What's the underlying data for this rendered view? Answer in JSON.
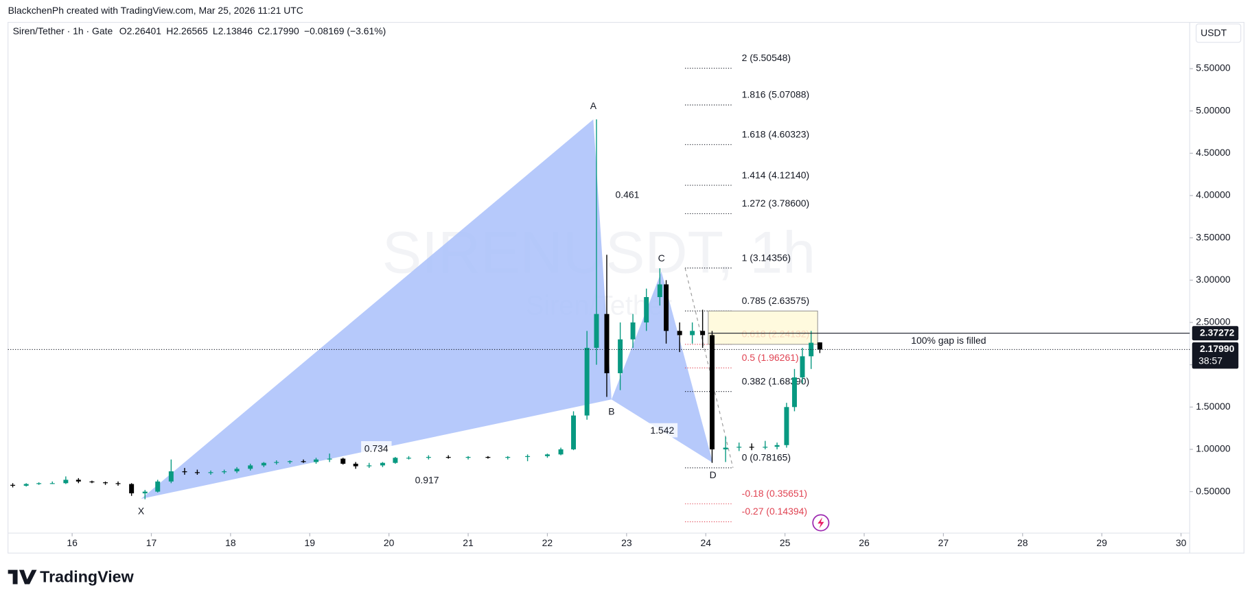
{
  "chart_data": {
    "type": "candlestick",
    "header": "BlackchenPh created with TradingView.com, Mar 25, 2026 11:21 UTC",
    "symbol": "Siren/Tether · 1h · Gate",
    "legend_values": [
      "O2.26401",
      "H2.26565",
      "L2.13846",
      "C2.17990",
      "−0.08169 (−3.61%)"
    ],
    "watermark": "SIRENUSDT, 1h",
    "watermark_sub": "Siren/Tether",
    "currency": "USDT",
    "brand": "TradingView",
    "up_color": "#089981",
    "down_color": "#000000",
    "pattern_color": "#a9c0fa",
    "xlim": [
      15.19,
      30.11
    ],
    "xticks": [
      16,
      17,
      18,
      19,
      20,
      21,
      22,
      23,
      24,
      25,
      26,
      27,
      28,
      29,
      30
    ],
    "ylim": [
      0,
      5.8
    ],
    "yticks": [
      {
        "value": 0.5,
        "label": "0.50000"
      },
      {
        "value": 1,
        "label": "1.00000"
      },
      {
        "value": 1.5,
        "label": "1.50000"
      },
      {
        "value": 2,
        "label": "2.00000"
      },
      {
        "value": 2.5,
        "label": "2.50000"
      },
      {
        "value": 3,
        "label": "3.00000"
      },
      {
        "value": 3.5,
        "label": "3.50000"
      },
      {
        "value": 4,
        "label": "4.00000"
      },
      {
        "value": 4.5,
        "label": "4.50000"
      },
      {
        "value": 5,
        "label": "5.00000"
      },
      {
        "value": 5.5,
        "label": "5.50000"
      }
    ],
    "candles": [
      {
        "x": 15.25,
        "open": 0.58,
        "high": 0.6,
        "low": 0.55,
        "close": 0.57
      },
      {
        "x": 15.42,
        "open": 0.57,
        "high": 0.6,
        "low": 0.56,
        "close": 0.59
      },
      {
        "x": 15.58,
        "open": 0.59,
        "high": 0.61,
        "low": 0.58,
        "close": 0.6
      },
      {
        "x": 15.75,
        "open": 0.6,
        "high": 0.62,
        "low": 0.59,
        "close": 0.6
      },
      {
        "x": 15.92,
        "open": 0.6,
        "high": 0.68,
        "low": 0.59,
        "close": 0.64
      },
      {
        "x": 16.08,
        "open": 0.64,
        "high": 0.66,
        "low": 0.6,
        "close": 0.62
      },
      {
        "x": 16.25,
        "open": 0.62,
        "high": 0.63,
        "low": 0.6,
        "close": 0.61
      },
      {
        "x": 16.42,
        "open": 0.61,
        "high": 0.62,
        "low": 0.58,
        "close": 0.6
      },
      {
        "x": 16.58,
        "open": 0.6,
        "high": 0.62,
        "low": 0.57,
        "close": 0.59
      },
      {
        "x": 16.75,
        "open": 0.59,
        "high": 0.6,
        "low": 0.45,
        "close": 0.48
      },
      {
        "x": 16.92,
        "open": 0.48,
        "high": 0.52,
        "low": 0.41,
        "close": 0.5
      },
      {
        "x": 17.08,
        "open": 0.5,
        "high": 0.64,
        "low": 0.49,
        "close": 0.62
      },
      {
        "x": 17.25,
        "open": 0.62,
        "high": 0.88,
        "low": 0.6,
        "close": 0.74
      },
      {
        "x": 17.42,
        "open": 0.74,
        "high": 0.78,
        "low": 0.7,
        "close": 0.73
      },
      {
        "x": 17.58,
        "open": 0.73,
        "high": 0.76,
        "low": 0.7,
        "close": 0.72
      },
      {
        "x": 17.75,
        "open": 0.72,
        "high": 0.75,
        "low": 0.7,
        "close": 0.73
      },
      {
        "x": 17.92,
        "open": 0.73,
        "high": 0.76,
        "low": 0.71,
        "close": 0.74
      },
      {
        "x": 18.08,
        "open": 0.74,
        "high": 0.79,
        "low": 0.72,
        "close": 0.77
      },
      {
        "x": 18.25,
        "open": 0.77,
        "high": 0.83,
        "low": 0.75,
        "close": 0.81
      },
      {
        "x": 18.42,
        "open": 0.81,
        "high": 0.85,
        "low": 0.79,
        "close": 0.84
      },
      {
        "x": 18.58,
        "open": 0.84,
        "high": 0.87,
        "low": 0.82,
        "close": 0.85
      },
      {
        "x": 18.75,
        "open": 0.85,
        "high": 0.87,
        "low": 0.83,
        "close": 0.86
      },
      {
        "x": 18.92,
        "open": 0.86,
        "high": 0.88,
        "low": 0.84,
        "close": 0.85
      },
      {
        "x": 19.08,
        "open": 0.85,
        "high": 0.9,
        "low": 0.83,
        "close": 0.88
      },
      {
        "x": 19.25,
        "open": 0.88,
        "high": 0.95,
        "low": 0.85,
        "close": 0.89
      },
      {
        "x": 19.42,
        "open": 0.89,
        "high": 0.9,
        "low": 0.82,
        "close": 0.83
      },
      {
        "x": 19.58,
        "open": 0.83,
        "high": 0.85,
        "low": 0.77,
        "close": 0.8
      },
      {
        "x": 19.75,
        "open": 0.8,
        "high": 0.84,
        "low": 0.78,
        "close": 0.81
      },
      {
        "x": 19.92,
        "open": 0.81,
        "high": 0.85,
        "low": 0.79,
        "close": 0.84
      },
      {
        "x": 20.08,
        "open": 0.84,
        "high": 0.91,
        "low": 0.83,
        "close": 0.9
      },
      {
        "x": 20.25,
        "open": 0.9,
        "high": 0.92,
        "low": 0.88,
        "close": 0.9
      },
      {
        "x": 20.5,
        "open": 0.9,
        "high": 0.93,
        "low": 0.88,
        "close": 0.91
      },
      {
        "x": 20.75,
        "open": 0.91,
        "high": 0.93,
        "low": 0.89,
        "close": 0.9
      },
      {
        "x": 21.0,
        "open": 0.9,
        "high": 0.92,
        "low": 0.88,
        "close": 0.91
      },
      {
        "x": 21.25,
        "open": 0.91,
        "high": 0.92,
        "low": 0.89,
        "close": 0.9
      },
      {
        "x": 21.5,
        "open": 0.9,
        "high": 0.92,
        "low": 0.88,
        "close": 0.91
      },
      {
        "x": 21.75,
        "open": 0.91,
        "high": 0.94,
        "low": 0.86,
        "close": 0.92
      },
      {
        "x": 22.0,
        "open": 0.92,
        "high": 0.95,
        "low": 0.9,
        "close": 0.94
      },
      {
        "x": 22.17,
        "open": 0.94,
        "high": 1.02,
        "low": 0.93,
        "close": 1.0
      },
      {
        "x": 22.33,
        "open": 1.0,
        "high": 1.45,
        "low": 0.99,
        "close": 1.4
      },
      {
        "x": 22.5,
        "open": 1.4,
        "high": 2.4,
        "low": 1.35,
        "close": 2.2
      },
      {
        "x": 22.62,
        "open": 2.2,
        "high": 4.9,
        "low": 2.0,
        "close": 2.6
      },
      {
        "x": 22.75,
        "open": 2.6,
        "high": 3.3,
        "low": 1.62,
        "close": 1.9
      },
      {
        "x": 22.92,
        "open": 1.9,
        "high": 2.5,
        "low": 1.7,
        "close": 2.3
      },
      {
        "x": 23.08,
        "open": 2.3,
        "high": 2.6,
        "low": 2.2,
        "close": 2.5
      },
      {
        "x": 23.25,
        "open": 2.5,
        "high": 2.9,
        "low": 2.4,
        "close": 2.8
      },
      {
        "x": 23.42,
        "open": 2.8,
        "high": 3.14,
        "low": 2.7,
        "close": 2.95
      },
      {
        "x": 23.5,
        "open": 2.95,
        "high": 3.0,
        "low": 2.25,
        "close": 2.4
      },
      {
        "x": 23.67,
        "open": 2.4,
        "high": 2.5,
        "low": 2.15,
        "close": 2.35
      },
      {
        "x": 23.83,
        "open": 2.35,
        "high": 2.5,
        "low": 2.25,
        "close": 2.4
      },
      {
        "x": 23.96,
        "open": 2.4,
        "high": 2.65,
        "low": 2.2,
        "close": 2.35
      },
      {
        "x": 24.08,
        "open": 2.35,
        "high": 2.4,
        "low": 0.84,
        "close": 1.0
      },
      {
        "x": 24.25,
        "open": 1.0,
        "high": 1.15,
        "low": 0.85,
        "close": 1.02
      },
      {
        "x": 24.42,
        "open": 1.02,
        "high": 1.08,
        "low": 0.98,
        "close": 1.03
      },
      {
        "x": 24.58,
        "open": 1.03,
        "high": 1.07,
        "low": 0.99,
        "close": 1.02
      },
      {
        "x": 24.75,
        "open": 1.02,
        "high": 1.1,
        "low": 1.0,
        "close": 1.03
      },
      {
        "x": 24.9,
        "open": 1.03,
        "high": 1.08,
        "low": 1.0,
        "close": 1.05
      },
      {
        "x": 25.02,
        "open": 1.05,
        "high": 1.55,
        "low": 1.02,
        "close": 1.5
      },
      {
        "x": 25.12,
        "open": 1.5,
        "high": 1.95,
        "low": 1.45,
        "close": 1.85
      },
      {
        "x": 25.22,
        "open": 1.85,
        "high": 2.2,
        "low": 1.78,
        "close": 2.1
      },
      {
        "x": 25.33,
        "open": 2.1,
        "high": 2.4,
        "low": 1.95,
        "close": 2.26
      },
      {
        "x": 25.44,
        "open": 2.26401,
        "high": 2.26565,
        "low": 2.13846,
        "close": 2.1799
      }
    ],
    "pattern_points": [
      {
        "name": "X",
        "x": 16.87,
        "y": 0.415
      },
      {
        "name": "A",
        "x": 22.58,
        "y": 4.9
      },
      {
        "name": "B",
        "x": 22.81,
        "y": 1.59
      },
      {
        "name": "C",
        "x": 23.44,
        "y": 3.1
      },
      {
        "name": "D",
        "x": 24.09,
        "y": 0.84
      }
    ],
    "ratios": [
      0.461,
      0.734,
      0.917,
      1.542
    ],
    "fib_levels": [
      {
        "level": 2,
        "price": 5.50548,
        "label": "2 (5.50548)",
        "color": "#131722"
      },
      {
        "level": 1.816,
        "price": 5.07088,
        "label": "1.816 (5.07088)",
        "color": "#131722"
      },
      {
        "level": 1.618,
        "price": 4.60323,
        "label": "1.618 (4.60323)",
        "color": "#131722"
      },
      {
        "level": 1.414,
        "price": 4.1214,
        "label": "1.414 (4.12140)",
        "color": "#131722"
      },
      {
        "level": 1.272,
        "price": 3.786,
        "label": "1.272 (3.78600)",
        "color": "#131722"
      },
      {
        "level": 1,
        "price": 3.14356,
        "label": "1 (3.14356)",
        "color": "#131722"
      },
      {
        "level": 0.785,
        "price": 2.63575,
        "label": "0.785 (2.63575)",
        "color": "#131722"
      },
      {
        "level": 0.618,
        "price": 2.24132,
        "label": "0.618 (2.24132)",
        "color": "#e04352"
      },
      {
        "level": 0.5,
        "price": 1.96261,
        "label": "0.5 (1.96261)",
        "color": "#e04352"
      },
      {
        "level": 0.382,
        "price": 1.6839,
        "label": "0.382 (1.68390)",
        "color": "#131722"
      },
      {
        "level": 0,
        "price": 0.78165,
        "label": "0 (0.78165)",
        "color": "#131722"
      },
      {
        "level": -0.18,
        "price": 0.35651,
        "label": "-0.18 (0.35651)",
        "color": "#e04352"
      },
      {
        "level": -0.27,
        "price": 0.14394,
        "label": "-0.27 (0.14394)",
        "color": "#e04352"
      }
    ],
    "gap_box": [
      2.24132,
      2.63575
    ],
    "gap_note": "100% gap is filled",
    "marked_price": 2.37272,
    "last_price": {
      "value": 2.1799,
      "label": "2.17990"
    },
    "countdown": "38:57"
  }
}
